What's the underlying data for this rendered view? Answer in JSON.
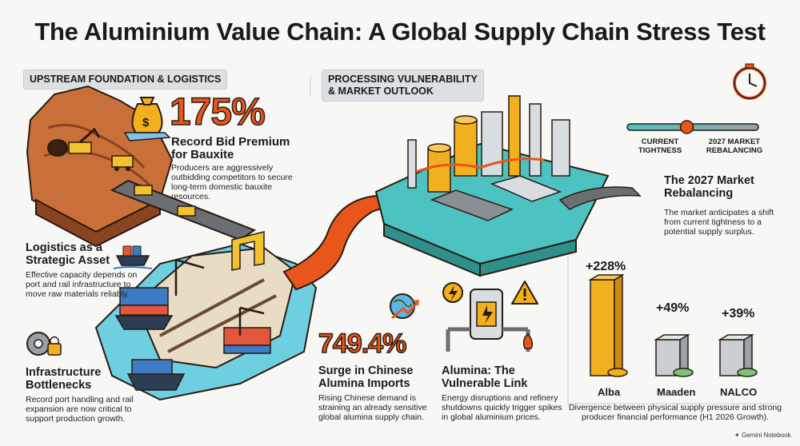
{
  "title": "The Aluminium Value Chain: A Global Supply Chain Stress Test",
  "sections": {
    "upstream": "UPSTREAM FOUNDATION & LOGISTICS",
    "processing_line1": "PROCESSING VULNERABILITY",
    "processing_line2": "& MARKET OUTLOOK"
  },
  "bauxite": {
    "value": "175%",
    "heading_line1": "Record Bid Premium",
    "heading_line2": "for Bauxite",
    "text_line1": "Producers are aggressively",
    "text_line2": "outbidding competitors to secure",
    "text_line3": "long-term domestic bauxite",
    "text_line4": "resources."
  },
  "logistics": {
    "heading_line1": "Logistics as a",
    "heading_line2": "Strategic Asset",
    "text_line1": "Effective capacity depends on",
    "text_line2": "port and rail infrastructure to",
    "text_line3": "move raw materials reliably."
  },
  "infrastructure": {
    "heading_line1": "Infrastructure",
    "heading_line2": "Bottlenecks",
    "text_line1": "Record port handling and rail",
    "text_line2": "expansion are now critical to",
    "text_line3": "support production growth."
  },
  "imports": {
    "value": "749.4%",
    "heading_line1": "Surge in Chinese",
    "heading_line2": "Alumina Imports",
    "text_line1": "Rising Chinese demand is",
    "text_line2": "straining an already sensitive",
    "text_line3": "global alumina supply chain."
  },
  "alumina": {
    "heading_line1": "Alumina: The",
    "heading_line2": "Vulnerable Link",
    "text_line1": "Energy disruptions and refinery",
    "text_line2": "shutdowns quickly trigger spikes",
    "text_line3": "in global aluminium prices."
  },
  "outlook": {
    "left_label_line1": "CURRENT",
    "left_label_line2": "TIGHTNESS",
    "right_label_line1": "2027 MARKET",
    "right_label_line2": "REBALANCING",
    "slider_position": 0.45,
    "heading_line1": "The 2027 Market",
    "heading_line2": "Rebalancing",
    "text_line1": "The market anticipates a shift",
    "text_line2": "from current tightness to a",
    "text_line3": "potential supply surplus."
  },
  "growth": {
    "companies": [
      {
        "name": "Alba",
        "value": "+228%",
        "number": 228
      },
      {
        "name": "Maaden",
        "value": "+49%",
        "number": 49
      },
      {
        "name": "NALCO",
        "value": "+39%",
        "number": 39
      }
    ],
    "caption_line1": "Divergence between physical supply pressure and strong",
    "caption_line2": "producer financial performance (H1 2026 Growth)."
  },
  "footer": "Gemini Notebook",
  "colors": {
    "accent_orange": "#e8561c",
    "bar_gold": "#f2b01e",
    "bar_silver": "#c9ced3",
    "teal": "#4cc3c0"
  }
}
